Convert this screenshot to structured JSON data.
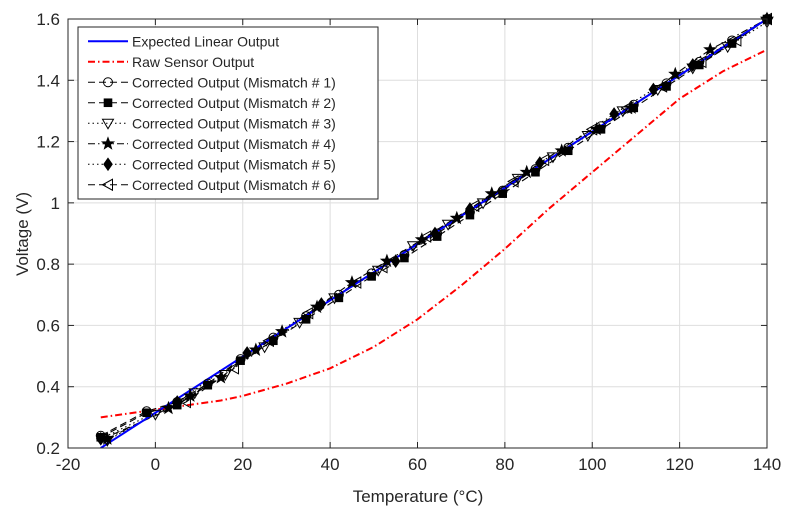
{
  "chart_data": {
    "type": "line",
    "title": "",
    "xlabel": "Temperature (°C)",
    "ylabel": "Voltage (V)",
    "xlim": [
      -20,
      140
    ],
    "ylim": [
      0.2,
      1.6
    ],
    "xticks": [
      -20,
      0,
      20,
      40,
      60,
      80,
      100,
      120,
      140
    ],
    "yticks": [
      0.2,
      0.4,
      0.6,
      0.8,
      1.0,
      1.2,
      1.4,
      1.6
    ],
    "xtick_labels": [
      "-20",
      "0",
      "20",
      "40",
      "60",
      "80",
      "100",
      "120",
      "140"
    ],
    "ytick_labels": [
      "0.2",
      "0.4",
      "0.6",
      "0.8",
      "1",
      "1.2",
      "1.4",
      "1.6"
    ],
    "grid": true,
    "legend_position": "top-left",
    "series": [
      {
        "name": "Expected Linear Output",
        "color": "#0000ff",
        "line_style": "solid",
        "marker": "none",
        "x": [
          -12.5,
          140
        ],
        "y": [
          0.2,
          1.6
        ]
      },
      {
        "name": "Raw Sensor Output",
        "color": "#ff0000",
        "line_style": "dashdot",
        "marker": "none",
        "x": [
          -12.5,
          -5,
          0,
          5,
          10,
          15,
          20,
          30,
          40,
          50,
          60,
          70,
          80,
          90,
          100,
          110,
          120,
          130,
          140
        ],
        "y": [
          0.3,
          0.315,
          0.325,
          0.335,
          0.345,
          0.355,
          0.37,
          0.41,
          0.46,
          0.53,
          0.62,
          0.73,
          0.85,
          0.98,
          1.1,
          1.22,
          1.34,
          1.43,
          1.5
        ]
      },
      {
        "name": "Corrected Output (Mismatch # 1)",
        "color": "#000000",
        "line_style": "dashed",
        "marker": "circle",
        "x": [
          -12.5,
          -2,
          5,
          12,
          19.5,
          27,
          34.5,
          42,
          49.5,
          57,
          64.5,
          72,
          79.5,
          87,
          94.5,
          102,
          109.5,
          117,
          124.5,
          132,
          140
        ],
        "y": [
          0.24,
          0.32,
          0.35,
          0.41,
          0.49,
          0.56,
          0.63,
          0.7,
          0.77,
          0.83,
          0.9,
          0.97,
          1.04,
          1.11,
          1.18,
          1.25,
          1.32,
          1.39,
          1.46,
          1.53,
          1.6
        ]
      },
      {
        "name": "Corrected Output (Mismatch # 2)",
        "color": "#000000",
        "line_style": "dashed",
        "marker": "square",
        "x": [
          -12.5,
          -2,
          5,
          12,
          19.5,
          27,
          34.5,
          42,
          49.5,
          57,
          64.5,
          72,
          79.5,
          87,
          94.5,
          102,
          109.5,
          117,
          124.5,
          132,
          140
        ],
        "y": [
          0.235,
          0.315,
          0.34,
          0.405,
          0.485,
          0.55,
          0.62,
          0.69,
          0.76,
          0.82,
          0.89,
          0.96,
          1.03,
          1.1,
          1.17,
          1.24,
          1.31,
          1.38,
          1.45,
          1.52,
          1.6
        ]
      },
      {
        "name": "Corrected Output (Mismatch # 3)",
        "color": "#000000",
        "line_style": "dotted",
        "marker": "triangle-down",
        "x": [
          -11,
          0,
          9,
          16,
          25,
          33,
          41,
          51,
          59,
          67,
          75,
          83,
          91,
          99,
          107,
          115,
          123,
          131,
          140
        ],
        "y": [
          0.225,
          0.31,
          0.38,
          0.44,
          0.53,
          0.61,
          0.69,
          0.78,
          0.86,
          0.93,
          1.0,
          1.08,
          1.15,
          1.22,
          1.3,
          1.37,
          1.44,
          1.51,
          1.59
        ]
      },
      {
        "name": "Corrected Output (Mismatch # 4)",
        "color": "#000000",
        "line_style": "dashdot",
        "marker": "star",
        "x": [
          -11,
          3,
          8,
          15,
          23,
          29,
          37,
          45,
          53,
          61,
          69,
          77,
          85,
          93,
          101,
          109,
          119,
          127,
          140
        ],
        "y": [
          0.23,
          0.33,
          0.37,
          0.43,
          0.52,
          0.58,
          0.66,
          0.74,
          0.81,
          0.88,
          0.95,
          1.03,
          1.1,
          1.17,
          1.24,
          1.31,
          1.42,
          1.5,
          1.6
        ]
      },
      {
        "name": "Corrected Output (Mismatch # 5)",
        "color": "#000000",
        "line_style": "dotted",
        "marker": "diamond",
        "x": [
          -12.5,
          5,
          21,
          38,
          55,
          64,
          72,
          88,
          105,
          114,
          123,
          140
        ],
        "y": [
          0.23,
          0.35,
          0.51,
          0.67,
          0.81,
          0.9,
          0.98,
          1.13,
          1.29,
          1.37,
          1.45,
          1.6
        ]
      },
      {
        "name": "Corrected Output (Mismatch # 6)",
        "color": "#000000",
        "line_style": "dashed",
        "marker": "triangle-left",
        "x": [
          -12,
          7,
          18,
          26,
          35,
          46,
          52,
          62,
          73,
          82,
          89,
          100,
          108,
          116,
          125,
          133,
          140
        ],
        "y": [
          0.23,
          0.35,
          0.46,
          0.55,
          0.64,
          0.74,
          0.79,
          0.89,
          0.99,
          1.07,
          1.14,
          1.24,
          1.31,
          1.38,
          1.46,
          1.53,
          1.6
        ]
      }
    ]
  }
}
